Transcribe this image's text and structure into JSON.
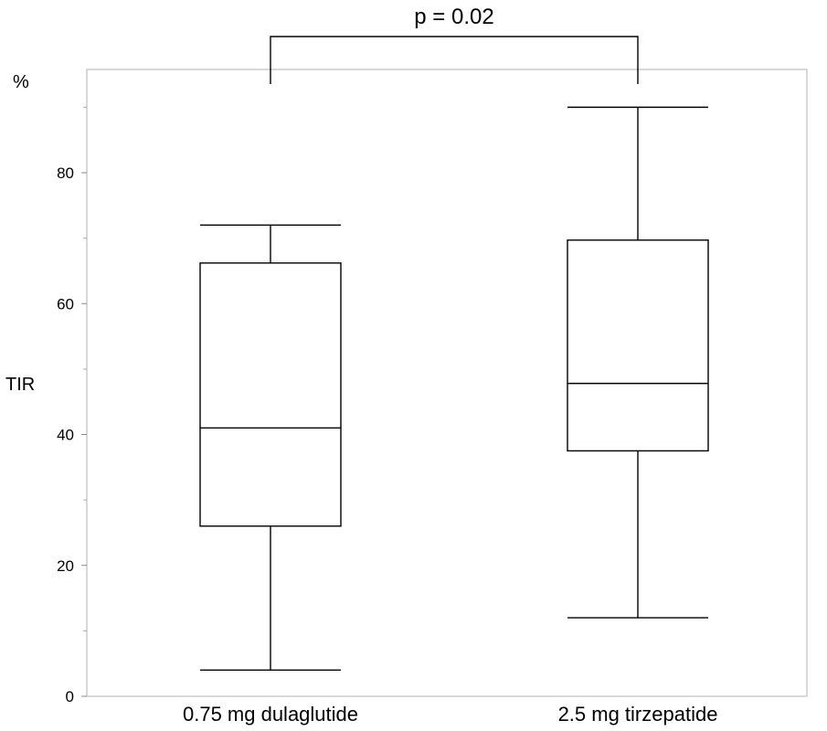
{
  "chart_data": {
    "type": "boxplot",
    "title": "",
    "xlabel": "",
    "ylabel": "TIR",
    "yunit": "%",
    "ylim": [
      0,
      95
    ],
    "yticks": [
      0,
      20,
      40,
      60,
      80
    ],
    "ytick_labels": [
      "0",
      "20",
      "40",
      "60",
      "80"
    ],
    "minor_yticks": [
      10,
      30,
      50,
      70,
      90
    ],
    "grid": false,
    "categories": [
      "0.75 mg dulaglutide",
      "2.5 mg tirzepatide"
    ],
    "boxes": [
      {
        "category": "0.75 mg dulaglutide",
        "min": 4,
        "q1": 26,
        "median": 41,
        "q3": 66.2,
        "max": 72
      },
      {
        "category": "2.5 mg tirzepatide",
        "min": 12,
        "q1": 37.5,
        "median": 47.8,
        "q3": 69.7,
        "max": 90
      }
    ],
    "annotation": {
      "text": "p = 0.02",
      "between": [
        "0.75 mg dulaglutide",
        "2.5 mg tirzepatide"
      ]
    }
  }
}
